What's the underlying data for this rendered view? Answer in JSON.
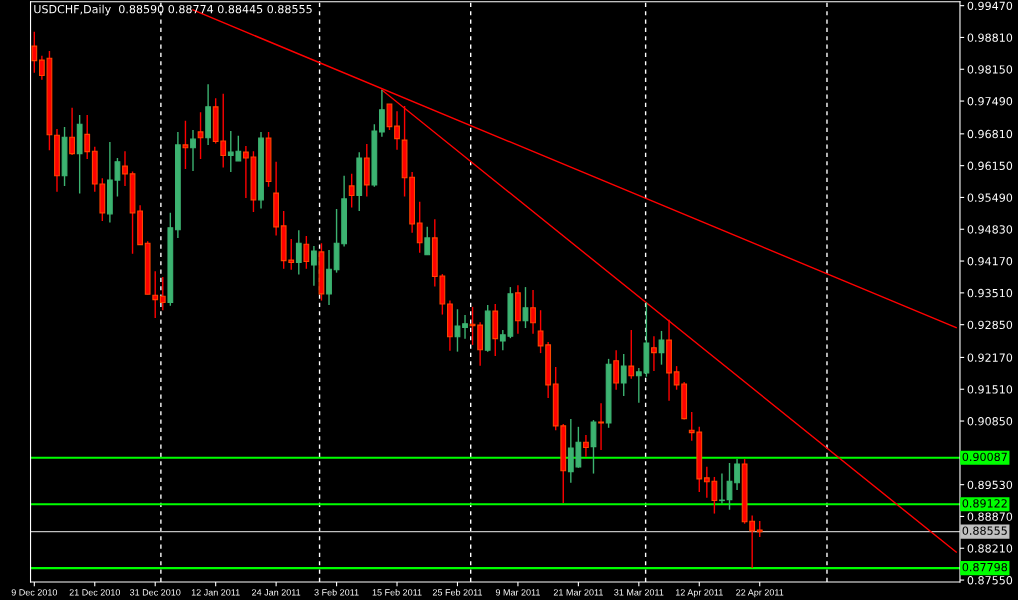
{
  "chart_data": {
    "type": "candlestick",
    "title": "USDCHF,Daily  0.88590 0.88774 0.88445 0.88555",
    "categories": [
      "9 Dec 2010",
      null,
      null,
      null,
      null,
      null,
      null,
      null,
      "21 Dec 2010",
      null,
      null,
      null,
      null,
      null,
      null,
      null,
      "31 Dec 2010",
      null,
      null,
      null,
      null,
      null,
      null,
      null,
      "12 Jan 2011",
      null,
      null,
      null,
      null,
      null,
      null,
      null,
      "24 Jan 2011",
      null,
      null,
      null,
      null,
      null,
      null,
      null,
      "3 Feb 2011",
      null,
      null,
      null,
      null,
      null,
      null,
      null,
      "15 Feb 2011",
      null,
      null,
      null,
      null,
      null,
      null,
      null,
      "25 Feb 2011",
      null,
      null,
      null,
      null,
      null,
      null,
      null,
      "9 Mar 2011",
      null,
      null,
      null,
      null,
      null,
      null,
      null,
      "21 Mar 2011",
      null,
      null,
      null,
      null,
      null,
      null,
      null,
      "31 Mar 2011",
      null,
      null,
      null,
      null,
      null,
      null,
      null,
      "12 Apr 2011",
      null,
      null,
      null,
      null,
      null,
      null,
      null,
      "22 Apr 2011",
      null,
      null,
      null,
      null,
      null,
      null,
      null,
      null,
      null,
      null,
      null,
      null,
      null,
      null,
      null,
      null,
      null,
      null,
      null,
      null,
      null,
      null,
      null,
      null,
      null,
      null
    ],
    "ohlc": [
      [
        0.9863,
        0.9893,
        0.9808,
        0.9833
      ],
      [
        0.9834,
        0.9843,
        0.9793,
        0.9802
      ],
      [
        0.9838,
        0.9853,
        0.9647,
        0.9679
      ],
      [
        0.9678,
        0.9691,
        0.9561,
        0.9594
      ],
      [
        0.9594,
        0.9695,
        0.9573,
        0.9674
      ],
      [
        0.9674,
        0.9735,
        0.9637,
        0.964
      ],
      [
        0.964,
        0.972,
        0.9557,
        0.9701
      ],
      [
        0.968,
        0.972,
        0.9629,
        0.9644
      ],
      [
        0.9645,
        0.9654,
        0.9561,
        0.9577
      ],
      [
        0.9577,
        0.9589,
        0.95,
        0.9517
      ],
      [
        0.9515,
        0.9664,
        0.9497,
        0.9585
      ],
      [
        0.9585,
        0.9631,
        0.9551,
        0.9623
      ],
      [
        0.9614,
        0.9645,
        0.9573,
        0.9598
      ],
      [
        0.9598,
        0.9603,
        0.9432,
        0.9517
      ],
      [
        0.9521,
        0.9533,
        0.9451,
        0.9451
      ],
      [
        0.9454,
        0.9458,
        0.9348,
        0.9348
      ],
      [
        0.9346,
        0.9396,
        0.9299,
        0.9337
      ],
      [
        0.9344,
        0.9384,
        0.9315,
        0.9331
      ],
      [
        0.9331,
        0.9517,
        0.9324,
        0.9486
      ],
      [
        0.9482,
        0.9685,
        0.9465,
        0.9658
      ],
      [
        0.9658,
        0.9708,
        0.9608,
        0.9652
      ],
      [
        0.9652,
        0.9689,
        0.9604,
        0.967
      ],
      [
        0.9685,
        0.9726,
        0.9629,
        0.9673
      ],
      [
        0.9673,
        0.9784,
        0.9658,
        0.9737
      ],
      [
        0.9737,
        0.9755,
        0.9661,
        0.9665
      ],
      [
        0.9666,
        0.9764,
        0.9611,
        0.9636
      ],
      [
        0.9636,
        0.9687,
        0.9602,
        0.9643
      ],
      [
        0.9625,
        0.9677,
        0.9625,
        0.9645
      ],
      [
        0.9643,
        0.9656,
        0.9548,
        0.9631
      ],
      [
        0.9633,
        0.9645,
        0.9519,
        0.9544
      ],
      [
        0.9544,
        0.9685,
        0.9526,
        0.9672
      ],
      [
        0.9672,
        0.9685,
        0.9571,
        0.9582
      ],
      [
        0.9558,
        0.9623,
        0.947,
        0.9488
      ],
      [
        0.949,
        0.9521,
        0.9401,
        0.9418
      ],
      [
        0.9419,
        0.9463,
        0.9399,
        0.9414
      ],
      [
        0.9414,
        0.9481,
        0.9389,
        0.9454
      ],
      [
        0.9452,
        0.9469,
        0.9401,
        0.9416
      ],
      [
        0.9409,
        0.9448,
        0.9366,
        0.9438
      ],
      [
        0.9436,
        0.9454,
        0.9335,
        0.9349
      ],
      [
        0.9349,
        0.944,
        0.9326,
        0.94
      ],
      [
        0.9399,
        0.9525,
        0.9393,
        0.9454
      ],
      [
        0.9453,
        0.9594,
        0.9447,
        0.9546
      ],
      [
        0.9573,
        0.9598,
        0.9528,
        0.9553
      ],
      [
        0.9553,
        0.9643,
        0.9521,
        0.9631
      ],
      [
        0.9631,
        0.966,
        0.9551,
        0.9575
      ],
      [
        0.9575,
        0.9701,
        0.9571,
        0.9687
      ],
      [
        0.9685,
        0.9772,
        0.9675,
        0.9731
      ],
      [
        0.9743,
        0.9743,
        0.9689,
        0.9696
      ],
      [
        0.9697,
        0.9728,
        0.9648,
        0.9671
      ],
      [
        0.9668,
        0.9739,
        0.9551,
        0.959
      ],
      [
        0.9591,
        0.9602,
        0.9476,
        0.9494
      ],
      [
        0.9496,
        0.954,
        0.9434,
        0.9455
      ],
      [
        0.943,
        0.9488,
        0.943,
        0.9465
      ],
      [
        0.9465,
        0.9504,
        0.9364,
        0.9385
      ],
      [
        0.9386,
        0.939,
        0.9306,
        0.9328
      ],
      [
        0.9328,
        0.9335,
        0.9231,
        0.926
      ],
      [
        0.926,
        0.9317,
        0.9229,
        0.9282
      ],
      [
        0.9279,
        0.9305,
        0.9256,
        0.9287
      ],
      [
        0.9286,
        0.9322,
        0.9243,
        0.9283
      ],
      [
        0.9284,
        0.929,
        0.92,
        0.9233
      ],
      [
        0.9232,
        0.9326,
        0.9229,
        0.9313
      ],
      [
        0.9313,
        0.9328,
        0.922,
        0.9256
      ],
      [
        0.9251,
        0.9274,
        0.9232,
        0.9264
      ],
      [
        0.9261,
        0.9363,
        0.9257,
        0.9349
      ],
      [
        0.9351,
        0.9367,
        0.9266,
        0.9293
      ],
      [
        0.9293,
        0.9363,
        0.9278,
        0.932
      ],
      [
        0.932,
        0.9357,
        0.9266,
        0.9289
      ],
      [
        0.9272,
        0.9315,
        0.9226,
        0.9241
      ],
      [
        0.9243,
        0.9249,
        0.9133,
        0.916
      ],
      [
        0.9162,
        0.9197,
        0.9066,
        0.9075
      ],
      [
        0.9075,
        0.9079,
        0.8915,
        0.8982
      ],
      [
        0.898,
        0.9089,
        0.8957,
        0.9029
      ],
      [
        0.899,
        0.9073,
        0.8988,
        0.9041
      ],
      [
        0.9041,
        0.9056,
        0.9011,
        0.903
      ],
      [
        0.9032,
        0.9087,
        0.8976,
        0.9083
      ],
      [
        0.9083,
        0.9122,
        0.9025,
        0.9081
      ],
      [
        0.9081,
        0.9214,
        0.9071,
        0.9203
      ],
      [
        0.921,
        0.9232,
        0.915,
        0.9164
      ],
      [
        0.9164,
        0.9224,
        0.9137,
        0.9199
      ],
      [
        0.9199,
        0.9274,
        0.9173,
        0.9179
      ],
      [
        0.9179,
        0.9195,
        0.9123,
        0.9187
      ],
      [
        0.9185,
        0.9331,
        0.9177,
        0.9247
      ],
      [
        0.9237,
        0.9261,
        0.9189,
        0.9227
      ],
      [
        0.9227,
        0.9272,
        0.9202,
        0.9253
      ],
      [
        0.9253,
        0.9295,
        0.9127,
        0.9185
      ],
      [
        0.9187,
        0.9199,
        0.915,
        0.916
      ],
      [
        0.9162,
        0.9166,
        0.9088,
        0.909
      ],
      [
        0.9066,
        0.9104,
        0.9044,
        0.9061
      ],
      [
        0.9062,
        0.9073,
        0.8938,
        0.8965
      ],
      [
        0.8967,
        0.899,
        0.8926,
        0.8959
      ],
      [
        0.896,
        0.8969,
        0.8893,
        0.892
      ],
      [
        0.892,
        0.8976,
        0.8914,
        0.8921
      ],
      [
        0.8922,
        0.8998,
        0.8901,
        0.896
      ],
      [
        0.8957,
        0.9006,
        0.8942,
        0.8996
      ],
      [
        0.8996,
        0.9006,
        0.8872,
        0.8876
      ],
      [
        0.8877,
        0.8889,
        0.878,
        0.8857
      ],
      [
        0.8859,
        0.88774,
        0.88445,
        0.88555
      ],
      null,
      null,
      null,
      null,
      null,
      null,
      null,
      null,
      null,
      null,
      null,
      null,
      null,
      null,
      null,
      null,
      null,
      null,
      null,
      null,
      null,
      null,
      null,
      null,
      null,
      null
    ],
    "colors": [
      "#ff0000",
      "#ff0000",
      "#ff0000",
      "#ff0000",
      "#3cb371",
      "#ff0000",
      "#3cb371",
      "#ff0000",
      "#ff0000",
      "#ff0000",
      "#3cb371",
      "#3cb371",
      "#ff0000",
      "#ff0000",
      "#ff0000",
      "#ff0000",
      "#ff0000",
      "#ff0000",
      "#3cb371",
      "#3cb371",
      "#ff0000",
      "#3cb371",
      "#ff0000",
      "#3cb371",
      "#ff0000",
      "#ff0000",
      "#3cb371",
      "#3cb371",
      "#ff0000",
      "#ff0000",
      "#3cb371",
      "#ff0000",
      "#ff0000",
      "#ff0000",
      "#ff0000",
      "#3cb371",
      "#ff0000",
      "#3cb371",
      "#ff0000",
      "#3cb371",
      "#3cb371",
      "#3cb371",
      "#ff0000",
      "#3cb371",
      "#ff0000",
      "#3cb371",
      "#3cb371",
      "#ff0000",
      "#ff0000",
      "#ff0000",
      "#ff0000",
      "#ff0000",
      "#3cb371",
      "#ff0000",
      "#ff0000",
      "#ff0000",
      "#3cb371",
      "#3cb371",
      "#ff0000",
      "#ff0000",
      "#3cb371",
      "#ff0000",
      "#3cb371",
      "#3cb371",
      "#ff0000",
      "#3cb371",
      "#ff0000",
      "#ff0000",
      "#ff0000",
      "#ff0000",
      "#ff0000",
      "#3cb371",
      "#3cb371",
      "#ff0000",
      "#3cb371",
      "#ff0000",
      "#3cb371",
      "#ff0000",
      "#3cb371",
      "#ff0000",
      "#3cb371",
      "#3cb371",
      "#ff0000",
      "#3cb371",
      "#ff0000",
      "#ff0000",
      "#ff0000",
      "#ff0000",
      "#ff0000",
      "#ff0000",
      "#ff0000",
      "#3cb371",
      "#3cb371",
      "#3cb371",
      "#ff0000",
      "#ff0000",
      "#ff0000",
      null,
      null,
      null,
      null,
      null,
      null,
      null,
      null,
      null,
      null,
      null,
      null,
      null,
      null,
      null,
      null,
      null,
      null,
      null,
      null,
      null,
      null,
      null,
      null,
      null,
      null
    ],
    "series": [
      {
        "type": "line",
        "color": "#ff0000",
        "values": [
          null,
          null,
          null,
          null,
          null,
          null,
          null,
          null,
          null,
          null,
          null,
          null,
          null,
          null,
          null,
          null,
          null,
          null,
          null,
          null,
          null,
          0.9938,
          null,
          null,
          null,
          null,
          null,
          null,
          null,
          null,
          null,
          null,
          null,
          null,
          null,
          null,
          null,
          null,
          null,
          null,
          null,
          null,
          null,
          null,
          null,
          null,
          null,
          null,
          null,
          null,
          null,
          null,
          null,
          null,
          null,
          null,
          null,
          null,
          null,
          null,
          null,
          null,
          null,
          null,
          null,
          null,
          null,
          null,
          null,
          null,
          null,
          null,
          null,
          null,
          null,
          null,
          null,
          null,
          null,
          null,
          null,
          null,
          null,
          null,
          null,
          null,
          null,
          null,
          null,
          null,
          null,
          null,
          null,
          null,
          null,
          null,
          null,
          null,
          null,
          null,
          null,
          null,
          null,
          null,
          null,
          null,
          null,
          null,
          null,
          null,
          null,
          null,
          null,
          null,
          null,
          null,
          null,
          null,
          null,
          null,
          null,
          null,
          0.9279
        ]
      },
      {
        "type": "line",
        "color": "#ff0000",
        "values": [
          null,
          null,
          null,
          null,
          null,
          null,
          null,
          null,
          null,
          null,
          null,
          null,
          null,
          null,
          null,
          null,
          null,
          null,
          null,
          null,
          null,
          null,
          null,
          null,
          null,
          null,
          null,
          null,
          null,
          null,
          null,
          null,
          null,
          null,
          null,
          null,
          null,
          null,
          null,
          null,
          null,
          null,
          null,
          null,
          null,
          null,
          0.9772,
          null,
          null,
          null,
          null,
          null,
          null,
          null,
          null,
          null,
          null,
          null,
          null,
          null,
          null,
          null,
          null,
          null,
          null,
          null,
          null,
          null,
          null,
          null,
          null,
          null,
          null,
          null,
          null,
          null,
          null,
          null,
          null,
          null,
          null,
          null,
          null,
          null,
          null,
          null,
          null,
          null,
          null,
          null,
          null,
          null,
          null,
          null,
          null,
          null,
          null,
          null,
          null,
          null,
          null,
          null,
          null,
          null,
          null,
          null,
          null,
          null,
          null,
          null,
          null,
          null,
          null,
          null,
          null,
          null,
          null,
          null,
          null,
          null,
          null,
          null,
          0.8813
        ]
      }
    ],
    "ylim": [
      0.8751,
      0.9955
    ],
    "yticks": [
      {
        "value": 0.9947,
        "label": "0.99470"
      },
      {
        "value": 0.9881,
        "label": "0.98810"
      },
      {
        "value": 0.9815,
        "label": "0.98150"
      },
      {
        "value": 0.9749,
        "label": "0.97490"
      },
      {
        "value": 0.9681,
        "label": "0.96810"
      },
      {
        "value": 0.9615,
        "label": "0.96150"
      },
      {
        "value": 0.9549,
        "label": "0.95490"
      },
      {
        "value": 0.9483,
        "label": "0.94830"
      },
      {
        "value": 0.9417,
        "label": "0.94170"
      },
      {
        "value": 0.9351,
        "label": "0.93510"
      },
      {
        "value": 0.9285,
        "label": "0.92850"
      },
      {
        "value": 0.9217,
        "label": "0.92170"
      },
      {
        "value": 0.9151,
        "label": "0.91510"
      },
      {
        "value": 0.9085,
        "label": "0.90850"
      },
      {
        "value": 0.8953,
        "label": "0.89530"
      },
      {
        "value": 0.8887,
        "label": "0.88870"
      },
      {
        "value": 0.8821,
        "label": "0.88210"
      },
      {
        "value": 0.8755,
        "label": "0.87550"
      }
    ],
    "ref_lines": [
      {
        "axis": "y",
        "value": 0.90087,
        "label": "0.90087",
        "color": "#00ff00"
      },
      {
        "axis": "y",
        "value": 0.89122,
        "label": "0.89122",
        "color": "#00ff00"
      },
      {
        "axis": "y",
        "value": 0.88555,
        "label": "0.88555",
        "color": "#c0c0c0"
      },
      {
        "axis": "y",
        "value": 0.87798,
        "label": "0.87798",
        "color": "#00ff00"
      }
    ]
  }
}
